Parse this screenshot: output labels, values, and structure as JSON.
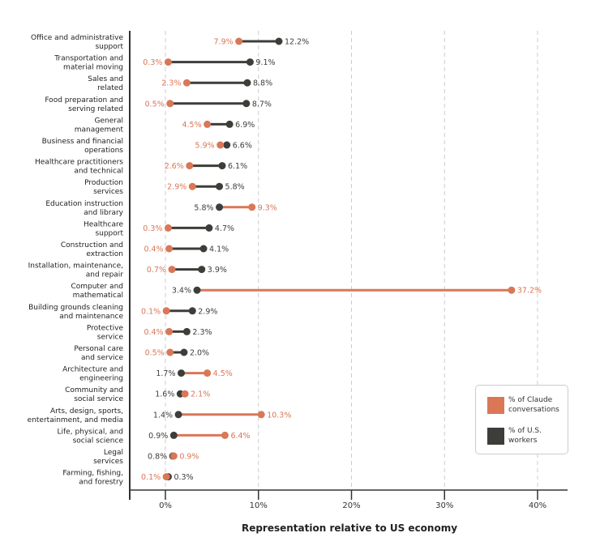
{
  "chart_data": {
    "type": "dumbbell",
    "xlabel": "Representation relative to US economy",
    "xlim": [
      0,
      40
    ],
    "xticks": [
      "0%",
      "10%",
      "20%",
      "30%",
      "40%"
    ],
    "xtick_values": [
      0,
      10,
      20,
      30,
      40
    ],
    "grid": "vertical dashed",
    "legend_placement": "bottom-right",
    "series": [
      {
        "name": "% of Claude conversations",
        "color": "#d97757"
      },
      {
        "name": "% of U.S. workers",
        "color": "#3d3d3a"
      }
    ],
    "categories": [
      [
        "Office and administrative",
        "support"
      ],
      [
        "Transportation and",
        "material moving"
      ],
      [
        "Sales and",
        "related"
      ],
      [
        "Food preparation and",
        "serving related"
      ],
      [
        "General",
        "management"
      ],
      [
        "Business and financial",
        "operations"
      ],
      [
        "Healthcare practitioners",
        "and technical"
      ],
      [
        "Production",
        "services"
      ],
      [
        "Education instruction",
        "and library"
      ],
      [
        "Healthcare",
        "support"
      ],
      [
        "Construction and",
        "extraction"
      ],
      [
        "Installation, maintenance,",
        "and repair"
      ],
      [
        "Computer and",
        "mathematical"
      ],
      [
        "Building grounds cleaning",
        "and maintenance"
      ],
      [
        "Protective",
        "service"
      ],
      [
        "Personal care",
        "and service"
      ],
      [
        "Architecture and",
        "engineering"
      ],
      [
        "Community and",
        "social service"
      ],
      [
        "Arts, design, sports,",
        "entertainment, and media"
      ],
      [
        "Life, physical, and",
        "social science"
      ],
      [
        "Legal",
        "services"
      ],
      [
        "Farming, fishing,",
        "and forestry"
      ]
    ],
    "claude": [
      7.9,
      0.3,
      2.3,
      0.5,
      4.5,
      5.9,
      2.6,
      2.9,
      9.3,
      0.3,
      0.4,
      0.7,
      37.2,
      0.1,
      0.4,
      0.5,
      4.5,
      2.1,
      10.3,
      6.4,
      0.9,
      0.1
    ],
    "workers": [
      12.2,
      9.1,
      8.8,
      8.7,
      6.9,
      6.6,
      6.1,
      5.8,
      5.8,
      4.7,
      4.1,
      3.9,
      3.4,
      2.9,
      2.3,
      2.0,
      1.7,
      1.6,
      1.4,
      0.9,
      0.8,
      0.3
    ]
  }
}
